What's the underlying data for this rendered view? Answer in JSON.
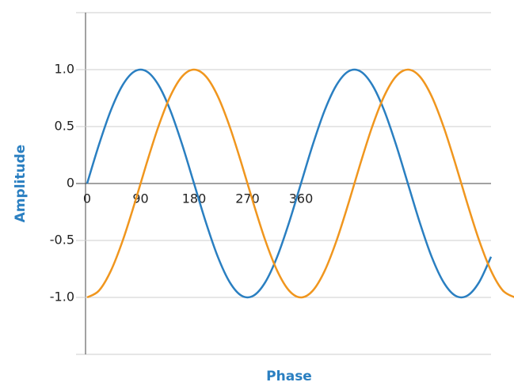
{
  "chart_data": {
    "type": "line",
    "x_label": "Phase",
    "y_label": "Amplitude",
    "series": [
      {
        "color": "#2a7fc1",
        "x": [
          0,
          20,
          40,
          60,
          80,
          100,
          120,
          140,
          160,
          180,
          200,
          220,
          240,
          260,
          280,
          300,
          320,
          340,
          360,
          380,
          400,
          420,
          440,
          460,
          480,
          500,
          520,
          540,
          560,
          580,
          600,
          620,
          640,
          660,
          680
        ],
        "values": [
          0,
          0.342,
          0.643,
          0.866,
          0.985,
          0.985,
          0.866,
          0.643,
          0.342,
          0,
          -0.342,
          -0.643,
          -0.866,
          -0.985,
          -0.985,
          -0.866,
          -0.643,
          -0.342,
          0,
          0.342,
          0.643,
          0.866,
          0.985,
          0.985,
          0.866,
          0.643,
          0.342,
          0,
          -0.342,
          -0.643,
          -0.866,
          -0.985,
          -0.985,
          -0.866,
          -0.643
        ]
      },
      {
        "color": "#f0961e",
        "x": [
          0,
          20,
          40,
          60,
          80,
          100,
          120,
          140,
          160,
          180,
          200,
          220,
          240,
          260,
          280,
          300,
          320,
          340,
          360,
          380,
          400,
          420,
          440,
          460,
          480,
          500,
          520,
          540,
          560,
          580,
          600,
          620,
          640,
          660,
          680,
          700,
          720
        ],
        "values": [
          -1,
          -0.94,
          -0.766,
          -0.5,
          -0.174,
          0.174,
          0.5,
          0.766,
          0.94,
          1,
          0.94,
          0.766,
          0.5,
          0.174,
          -0.174,
          -0.5,
          -0.766,
          -0.94,
          -1,
          -0.94,
          -0.766,
          -0.5,
          -0.174,
          0.174,
          0.5,
          0.766,
          0.94,
          1,
          0.94,
          0.766,
          0.5,
          0.174,
          -0.174,
          -0.5,
          -0.766,
          -0.94,
          -1
        ]
      }
    ],
    "xlim": [
      0,
      680
    ],
    "xticks": [
      0,
      90,
      180,
      270,
      360
    ],
    "ylim": [
      -1.5,
      1.5
    ],
    "yticks": [
      {
        "value": 1,
        "label": "1.0"
      },
      0.5,
      0,
      -0.5,
      {
        "value": -1,
        "label": "-1.0"
      }
    ],
    "grid": true
  }
}
